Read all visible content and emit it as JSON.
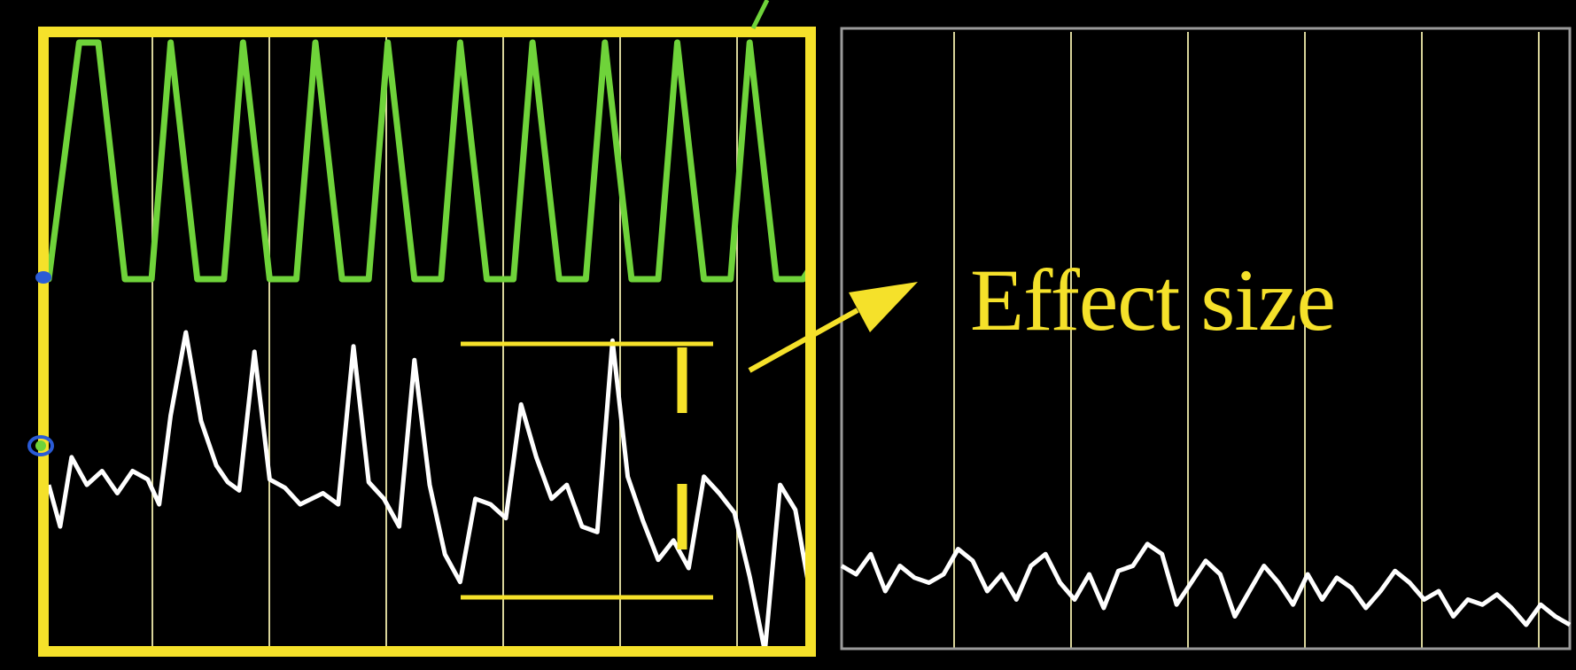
{
  "colors": {
    "background": "#000000",
    "highlight": "#f5e12a",
    "frame_right": "#9a9a9a",
    "gridline": "#d8d49a",
    "reference_trace": "#6fd33a",
    "signal_trace": "#ffffff",
    "marker": "#2a5bd6"
  },
  "annotation": {
    "label": "Effect size"
  },
  "chart_data": {
    "type": "line",
    "title": "",
    "xlabel": "",
    "ylabel": "",
    "grid": "vertical",
    "panels": [
      {
        "name": "highlighted",
        "xlim": [
          0,
          1
        ],
        "series": [
          {
            "role": "reference",
            "x": [
              0,
              0.04,
              0.065,
              0.1,
              0.135,
              0.16,
              0.195,
              0.23,
              0.255,
              0.29,
              0.325,
              0.35,
              0.385,
              0.42,
              0.445,
              0.48,
              0.515,
              0.54,
              0.575,
              0.61,
              0.635,
              0.67,
              0.705,
              0.73,
              0.765,
              0.8,
              0.825,
              0.86,
              0.895,
              0.92,
              0.955,
              0.99,
              1.0
            ],
            "y": [
              0.0,
              1.0,
              1.0,
              0.0,
              0.0,
              1.0,
              0.0,
              0.0,
              1.0,
              0.0,
              0.0,
              1.0,
              0.0,
              0.0,
              1.0,
              0.0,
              0.0,
              1.0,
              0.0,
              0.0,
              1.0,
              0.0,
              0.0,
              1.0,
              0.0,
              0.0,
              1.0,
              0.0,
              0.0,
              1.0,
              0.0,
              0.0,
              0.05
            ]
          },
          {
            "role": "signal",
            "x": [
              0,
              0.015,
              0.03,
              0.05,
              0.07,
              0.09,
              0.11,
              0.13,
              0.145,
              0.16,
              0.18,
              0.2,
              0.22,
              0.235,
              0.25,
              0.27,
              0.29,
              0.31,
              0.33,
              0.36,
              0.38,
              0.4,
              0.42,
              0.44,
              0.46,
              0.48,
              0.5,
              0.52,
              0.54,
              0.56,
              0.58,
              0.6,
              0.62,
              0.64,
              0.66,
              0.68,
              0.7,
              0.72,
              0.74,
              0.76,
              0.78,
              0.8,
              0.82,
              0.84,
              0.86,
              0.88,
              0.9,
              0.92,
              0.94,
              0.96,
              0.98,
              1.0
            ],
            "y": [
              0.45,
              0.3,
              0.55,
              0.45,
              0.5,
              0.42,
              0.5,
              0.47,
              0.38,
              0.7,
              1.0,
              0.68,
              0.52,
              0.46,
              0.43,
              0.93,
              0.47,
              0.44,
              0.38,
              0.42,
              0.38,
              0.95,
              0.46,
              0.4,
              0.3,
              0.9,
              0.45,
              0.2,
              0.1,
              0.4,
              0.38,
              0.33,
              0.74,
              0.55,
              0.4,
              0.45,
              0.3,
              0.28,
              0.97,
              0.48,
              0.32,
              0.18,
              0.25,
              0.15,
              0.48,
              0.42,
              0.35,
              0.12,
              -0.15,
              0.45,
              0.36,
              0.05
            ]
          }
        ]
      },
      {
        "name": "right",
        "xlim": [
          0,
          1
        ],
        "series": [
          {
            "role": "signal",
            "x": [
              0,
              0.02,
              0.04,
              0.06,
              0.08,
              0.1,
              0.12,
              0.14,
              0.16,
              0.18,
              0.2,
              0.22,
              0.24,
              0.26,
              0.28,
              0.3,
              0.32,
              0.34,
              0.36,
              0.38,
              0.4,
              0.42,
              0.44,
              0.46,
              0.48,
              0.5,
              0.52,
              0.54,
              0.56,
              0.58,
              0.6,
              0.62,
              0.64,
              0.66,
              0.68,
              0.7,
              0.72,
              0.74,
              0.76,
              0.78,
              0.8,
              0.82,
              0.84,
              0.86,
              0.88,
              0.9,
              0.92,
              0.94,
              0.96,
              0.98,
              1.0
            ],
            "y": [
              0.35,
              0.3,
              0.42,
              0.2,
              0.35,
              0.28,
              0.25,
              0.3,
              0.45,
              0.38,
              0.2,
              0.3,
              0.15,
              0.35,
              0.42,
              0.25,
              0.15,
              0.3,
              0.1,
              0.32,
              0.35,
              0.48,
              0.42,
              0.12,
              0.25,
              0.38,
              0.3,
              0.05,
              0.2,
              0.35,
              0.25,
              0.12,
              0.3,
              0.15,
              0.28,
              0.22,
              0.1,
              0.2,
              0.32,
              0.25,
              0.15,
              0.2,
              0.05,
              0.15,
              0.12,
              0.18,
              0.1,
              0.0,
              0.12,
              0.05,
              0.0
            ]
          }
        ]
      }
    ]
  }
}
